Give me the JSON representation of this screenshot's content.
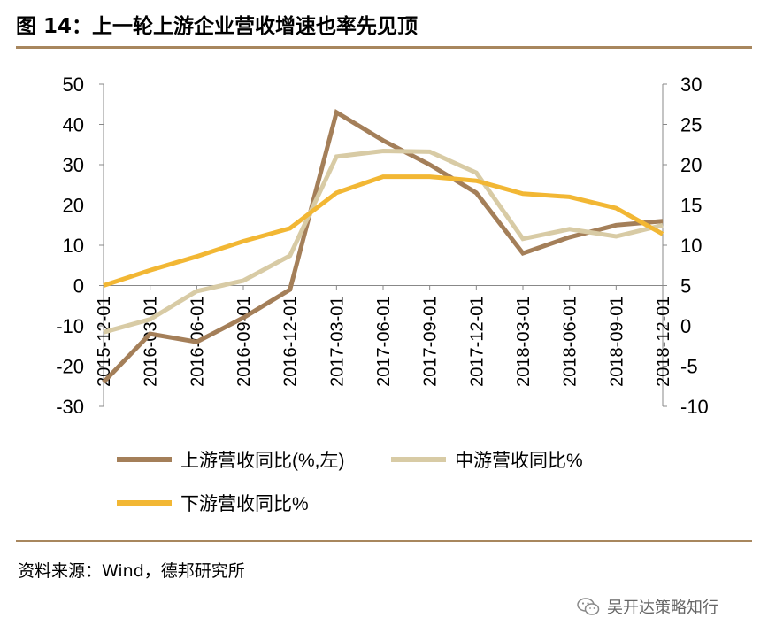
{
  "figure": {
    "title": "图 14：上一轮上游企业营收增速也率先见顶",
    "source": "资料来源：Wind，德邦研究所",
    "watermark": "吴开达策略知行"
  },
  "colors": {
    "upstream": "#a47f59",
    "midstream": "#d8cba5",
    "downstream": "#f2b734",
    "rule": "#a8875e"
  },
  "chart_data": {
    "type": "line",
    "title": "",
    "categories": [
      "2015-12-01",
      "2016-03-01",
      "2016-06-01",
      "2016-09-01",
      "2016-12-01",
      "2017-03-01",
      "2017-06-01",
      "2017-09-01",
      "2017-12-01",
      "2018-03-01",
      "2018-06-01",
      "2018-09-01",
      "2018-12-01"
    ],
    "y_left": {
      "ylim": [
        -30,
        50
      ],
      "ticks": [
        "-30",
        "-20",
        "-10",
        "0",
        "10",
        "20",
        "30",
        "40",
        "50"
      ]
    },
    "y_right": {
      "ylim": [
        -10,
        30
      ],
      "ticks": [
        "-10",
        "-5",
        "0",
        "5",
        "10",
        "15",
        "20",
        "25",
        "30"
      ]
    },
    "series": [
      {
        "name": "上游营收同比(%,左)",
        "axis": "left",
        "color_key": "upstream",
        "values": [
          -24,
          -12,
          -14,
          -8,
          -1,
          43,
          36,
          30,
          23,
          8,
          12,
          15,
          16
        ]
      },
      {
        "name": "中游营收同比%",
        "axis": "right",
        "color_key": "midstream",
        "values": [
          -0.8,
          0.8,
          4.3,
          5.6,
          8.7,
          21,
          21.7,
          21.6,
          19,
          10.8,
          12,
          11.1,
          12.5
        ]
      },
      {
        "name": "下游营收同比%",
        "axis": "right",
        "color_key": "downstream",
        "values": [
          5,
          6.9,
          8.6,
          10.5,
          12.1,
          16.5,
          18.5,
          18.5,
          18,
          16.4,
          16,
          14.6,
          11.4
        ]
      }
    ],
    "legend": {
      "placement": "bottom",
      "rows": [
        [
          0,
          1
        ],
        [
          2
        ]
      ]
    }
  }
}
